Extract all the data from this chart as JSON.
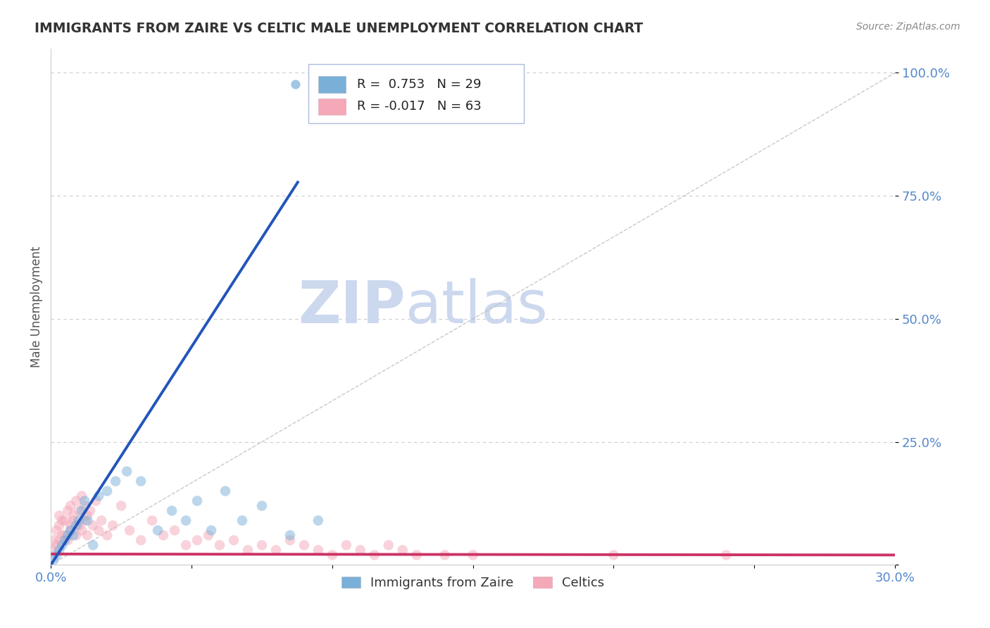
{
  "title": "IMMIGRANTS FROM ZAIRE VS CELTIC MALE UNEMPLOYMENT CORRELATION CHART",
  "source_text": "Source: ZipAtlas.com",
  "ylabel": "Male Unemployment",
  "xlim": [
    0.0,
    0.3
  ],
  "ylim": [
    0.0,
    1.05
  ],
  "ytick_labels": [
    "",
    "25.0%",
    "50.0%",
    "75.0%",
    "100.0%"
  ],
  "ytick_vals": [
    0.0,
    0.25,
    0.5,
    0.75,
    1.0
  ],
  "xtick_vals": [
    0.0,
    0.05,
    0.1,
    0.15,
    0.2,
    0.25,
    0.3
  ],
  "xtick_labels": [
    "0.0%",
    "",
    "",
    "",
    "",
    "",
    "30.0%"
  ],
  "legend_entries": [
    {
      "label": "Immigrants from Zaire",
      "color": "#a8c4e0",
      "R": 0.753,
      "N": 29
    },
    {
      "label": "Celtics",
      "color": "#f4a8b8",
      "R": -0.017,
      "N": 63
    }
  ],
  "blue_scatter_x": [
    0.001,
    0.002,
    0.003,
    0.004,
    0.005,
    0.006,
    0.007,
    0.008,
    0.009,
    0.01,
    0.011,
    0.012,
    0.013,
    0.015,
    0.017,
    0.02,
    0.023,
    0.027,
    0.032,
    0.038,
    0.043,
    0.048,
    0.052,
    0.057,
    0.062,
    0.068,
    0.075,
    0.085,
    0.095
  ],
  "blue_scatter_y": [
    0.01,
    0.02,
    0.03,
    0.04,
    0.05,
    0.06,
    0.07,
    0.06,
    0.08,
    0.09,
    0.11,
    0.13,
    0.09,
    0.04,
    0.14,
    0.15,
    0.17,
    0.19,
    0.17,
    0.07,
    0.11,
    0.09,
    0.13,
    0.07,
    0.15,
    0.09,
    0.12,
    0.06,
    0.09
  ],
  "pink_scatter_x": [
    0.001,
    0.001,
    0.002,
    0.002,
    0.003,
    0.003,
    0.003,
    0.004,
    0.004,
    0.005,
    0.005,
    0.006,
    0.006,
    0.007,
    0.007,
    0.007,
    0.008,
    0.008,
    0.009,
    0.009,
    0.01,
    0.01,
    0.011,
    0.011,
    0.012,
    0.012,
    0.013,
    0.013,
    0.014,
    0.015,
    0.016,
    0.017,
    0.018,
    0.02,
    0.022,
    0.025,
    0.028,
    0.032,
    0.036,
    0.04,
    0.044,
    0.048,
    0.052,
    0.056,
    0.06,
    0.065,
    0.07,
    0.075,
    0.08,
    0.085,
    0.09,
    0.095,
    0.1,
    0.105,
    0.11,
    0.115,
    0.12,
    0.125,
    0.13,
    0.14,
    0.15,
    0.2,
    0.24
  ],
  "pink_scatter_y": [
    0.03,
    0.05,
    0.04,
    0.07,
    0.05,
    0.08,
    0.1,
    0.06,
    0.09,
    0.06,
    0.09,
    0.11,
    0.05,
    0.08,
    0.12,
    0.07,
    0.1,
    0.09,
    0.13,
    0.06,
    0.11,
    0.08,
    0.14,
    0.07,
    0.12,
    0.09,
    0.1,
    0.06,
    0.11,
    0.08,
    0.13,
    0.07,
    0.09,
    0.06,
    0.08,
    0.12,
    0.07,
    0.05,
    0.09,
    0.06,
    0.07,
    0.04,
    0.05,
    0.06,
    0.04,
    0.05,
    0.03,
    0.04,
    0.03,
    0.05,
    0.04,
    0.03,
    0.02,
    0.04,
    0.03,
    0.02,
    0.04,
    0.03,
    0.02,
    0.02,
    0.02,
    0.02,
    0.02
  ],
  "blue_line_x": [
    0.0,
    0.088
  ],
  "blue_line_y": [
    0.0,
    0.78
  ],
  "pink_line_x": [
    0.0,
    0.3
  ],
  "pink_line_y": [
    0.022,
    0.02
  ],
  "diagonal_line_x": [
    0.0,
    0.3
  ],
  "diagonal_line_y": [
    0.0,
    1.0
  ],
  "scatter_size": 110,
  "scatter_alpha": 0.5,
  "blue_scatter_color": "#7ab0d8",
  "pink_scatter_color": "#f4a8b8",
  "blue_line_color": "#2255bb",
  "pink_line_color": "#cc3366",
  "diagonal_line_color": "#bbbbbb",
  "grid_color": "#cccccc",
  "bg_color": "#ffffff",
  "title_color": "#333333",
  "axis_color": "#5588cc",
  "watermark_zip": "ZIP",
  "watermark_atlas": "atlas",
  "watermark_color": "#ccd8ee",
  "box_edge_color": "#aabbdd"
}
